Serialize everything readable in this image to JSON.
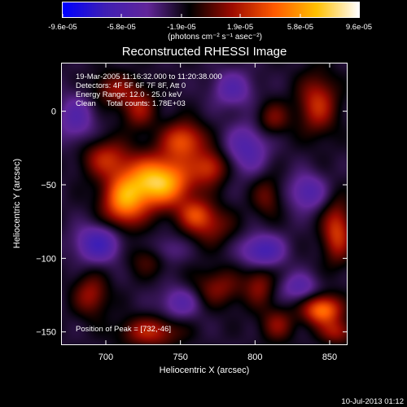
{
  "chart_data": {
    "type": "heatmap",
    "title": "Reconstructed RHESSI Image",
    "xlabel": "Heliocentric X (arcsec)",
    "ylabel": "Heliocentric Y (arcsec)",
    "xlim": [
      670,
      862
    ],
    "ylim": [
      -159,
      33
    ],
    "x_ticks": [
      700,
      750,
      800,
      850
    ],
    "y_ticks": [
      -150,
      -100,
      -50,
      0
    ],
    "colorbar": {
      "range": [
        -9.6e-05,
        9.6e-05
      ],
      "tick_values": [
        -9.6e-05,
        -5.8e-05,
        -1.9e-05,
        1.9e-05,
        5.8e-05,
        9.6e-05
      ],
      "tick_labels": [
        "-9.6e-05",
        "-5.8e-05",
        "-1.9e-05",
        "1.9e-05",
        "5.8e-05",
        "9.6e-05"
      ],
      "unit_label": "(photons cm⁻² s⁻¹ asec⁻²)",
      "colormap": [
        "#0000ff",
        "#3f1fb4",
        "#62269a",
        "#000000",
        "#9c0a00",
        "#ff5a00",
        "#ffc000",
        "#ffffff"
      ]
    },
    "annotations": [
      "19-Mar-2005 11:16:32.000 to 11:20:38.000",
      "Detectors: 4F 5F 6F 7F 8F, Att 0",
      "Energy Range: 12.0 - 25.0 keV",
      "Clean     Total counts: 1.78E+03"
    ],
    "peak": {
      "label": "Position of Peak = [732,-46]",
      "x": 732,
      "y": -46
    },
    "features": [
      {
        "x": 735,
        "y": -48,
        "v": 9.6e-05,
        "sx": 16,
        "sy": 12
      },
      {
        "x": 712,
        "y": -62,
        "v": 6.5e-05,
        "sx": 10,
        "sy": 12
      },
      {
        "x": 752,
        "y": -20,
        "v": 5.5e-05,
        "sx": 10,
        "sy": 9
      },
      {
        "x": 770,
        "y": -38,
        "v": 4.2e-05,
        "sx": 8,
        "sy": 8
      },
      {
        "x": 700,
        "y": -32,
        "v": 4e-05,
        "sx": 11,
        "sy": 9
      },
      {
        "x": 722,
        "y": 2,
        "v": 3.5e-05,
        "sx": 8,
        "sy": 10
      },
      {
        "x": 705,
        "y": 15,
        "v": 3e-05,
        "sx": 10,
        "sy": 8
      },
      {
        "x": 770,
        "y": -78,
        "v": 3e-05,
        "sx": 11,
        "sy": 9
      },
      {
        "x": 730,
        "y": -100,
        "v": 2.5e-05,
        "sx": 10,
        "sy": 8
      },
      {
        "x": 775,
        "y": -120,
        "v": 3e-05,
        "sx": 12,
        "sy": 9
      },
      {
        "x": 690,
        "y": -125,
        "v": 3.5e-05,
        "sx": 8,
        "sy": 10
      },
      {
        "x": 730,
        "y": -150,
        "v": 4.2e-05,
        "sx": 14,
        "sy": 7
      },
      {
        "x": 845,
        "y": -135,
        "v": 7e-05,
        "sx": 9,
        "sy": 7
      },
      {
        "x": 855,
        "y": -150,
        "v": 3.5e-05,
        "sx": 8,
        "sy": 6
      },
      {
        "x": 815,
        "y": -145,
        "v": 3e-05,
        "sx": 8,
        "sy": 8
      },
      {
        "x": 803,
        "y": -118,
        "v": 3e-05,
        "sx": 7,
        "sy": 10
      },
      {
        "x": 855,
        "y": -82,
        "v": 5e-05,
        "sx": 7,
        "sy": 14
      },
      {
        "x": 842,
        "y": 5,
        "v": 4.5e-05,
        "sx": 9,
        "sy": 14
      },
      {
        "x": 812,
        "y": -5,
        "v": 2.8e-05,
        "sx": 8,
        "sy": 8
      },
      {
        "x": 808,
        "y": -58,
        "v": 2.5e-05,
        "sx": 7,
        "sy": 10
      },
      {
        "x": 760,
        "y": -70,
        "v": 3.8e-05,
        "sx": 8,
        "sy": 7
      },
      {
        "x": 805,
        "y": -95,
        "v": -4.5e-05,
        "sx": 10,
        "sy": 8
      },
      {
        "x": 835,
        "y": -55,
        "v": -3.5e-05,
        "sx": 9,
        "sy": 9
      },
      {
        "x": 695,
        "y": -90,
        "v": -4.5e-05,
        "sx": 11,
        "sy": 9
      },
      {
        "x": 680,
        "y": -5,
        "v": -3e-05,
        "sx": 9,
        "sy": 12
      },
      {
        "x": 795,
        "y": -25,
        "v": -3.5e-05,
        "sx": 10,
        "sy": 12
      },
      {
        "x": 785,
        "y": 15,
        "v": -3e-05,
        "sx": 10,
        "sy": 9
      },
      {
        "x": 750,
        "y": -130,
        "v": -3e-05,
        "sx": 10,
        "sy": 8
      },
      {
        "x": 740,
        "y": -95,
        "v": -2.5e-05,
        "sx": 9,
        "sy": 7
      },
      {
        "x": 830,
        "y": -120,
        "v": -3e-05,
        "sx": 9,
        "sy": 7
      }
    ]
  },
  "footer": {
    "timestamp": "10-Jul-2013 01:12"
  }
}
